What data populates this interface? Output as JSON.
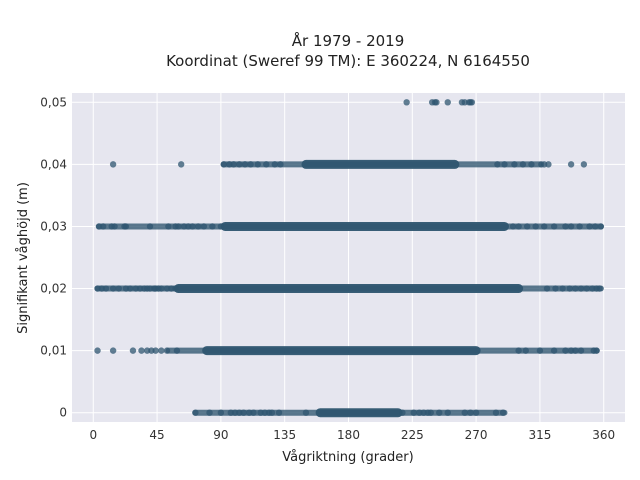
{
  "chart_data": {
    "type": "scatter",
    "title": "År 1979 - 2019",
    "subtitle": "Koordinat (Sweref 99 TM): E 360224, N 6164550",
    "xlabel": "Vågriktning (grader)",
    "ylabel": "Signifikant våghöjd (m)",
    "xlim": [
      -15,
      375
    ],
    "ylim": [
      -0.0015,
      0.0515
    ],
    "x_ticks": [
      0,
      45,
      90,
      135,
      180,
      225,
      270,
      315,
      360
    ],
    "x_tick_labels": [
      "0",
      "45",
      "90",
      "135",
      "180",
      "225",
      "270",
      "315",
      "360"
    ],
    "y_ticks": [
      0,
      0.01,
      0.02,
      0.03,
      0.04,
      0.05
    ],
    "y_tick_labels": [
      "0",
      "0,01",
      "0,02",
      "0,03",
      "0,04",
      "0,05"
    ],
    "grid": true,
    "marker_color": "#2f5670",
    "background_color": "#e6e6ef",
    "levels": [
      {
        "y": 0,
        "dense": [
          72,
          290
        ],
        "core": [
          160,
          215
        ],
        "points": [
          72,
          82,
          90,
          97,
          100,
          103,
          106,
          110,
          113,
          118,
          121,
          124,
          126,
          131,
          150,
          218,
          226,
          230,
          233,
          236,
          238,
          244,
          250,
          262,
          266,
          270,
          284,
          289
        ]
      },
      {
        "y": 0.01,
        "dense": [
          53,
          355
        ],
        "core": [
          80,
          270
        ],
        "points": [
          3,
          14,
          28,
          34,
          38,
          41,
          44,
          48,
          52,
          59,
          300,
          305,
          315,
          325,
          333,
          337,
          340,
          344,
          353,
          355
        ]
      },
      {
        "y": 0.02,
        "dense": [
          3,
          358
        ],
        "core": [
          60,
          300
        ],
        "points": [
          3,
          6,
          9,
          14,
          18,
          23,
          26,
          30,
          33,
          36,
          38,
          40,
          43,
          44,
          46,
          48,
          52,
          55,
          58,
          320,
          326,
          331,
          336,
          340,
          344,
          348,
          352,
          355,
          357
        ]
      },
      {
        "y": 0.03,
        "dense": [
          4,
          358
        ],
        "core": [
          93,
          290
        ],
        "points": [
          4,
          7,
          13,
          15,
          22,
          23,
          40,
          53,
          58,
          60,
          64,
          67,
          70,
          74,
          78,
          84,
          90,
          296,
          300,
          306,
          312,
          318,
          325,
          333,
          337,
          343,
          350,
          354,
          358
        ]
      },
      {
        "y": 0.04,
        "dense": [
          92,
          315
        ],
        "core": [
          150,
          255
        ],
        "points": [
          14,
          62,
          92,
          96,
          99,
          103,
          107,
          111,
          116,
          122,
          128,
          132,
          285,
          290,
          297,
          303,
          309,
          316,
          318,
          321,
          337,
          346
        ]
      },
      {
        "y": 0.05,
        "dense": null,
        "core": null,
        "points": [
          221,
          239,
          241,
          242,
          250,
          260,
          262,
          265,
          266,
          267
        ]
      }
    ]
  }
}
